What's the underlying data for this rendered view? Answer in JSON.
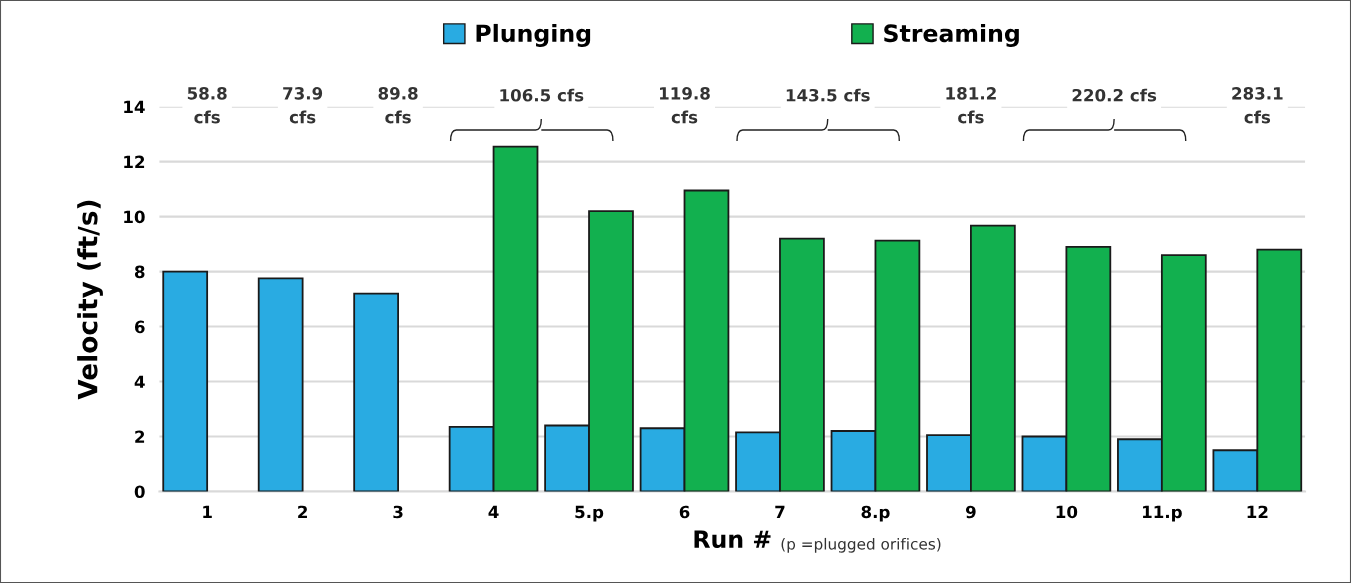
{
  "chart_data": {
    "type": "bar",
    "xlabel": "Run #",
    "ylabel": "Velocity (ft/s)",
    "categories": [
      "1",
      "2",
      "3",
      "4",
      "5.p",
      "6",
      "7",
      "8.p",
      "9",
      "10",
      "11.p",
      "12"
    ],
    "series": [
      {
        "name": "Plunging",
        "color": "#29abe2",
        "values": [
          8.0,
          7.75,
          7.2,
          2.35,
          2.4,
          2.3,
          2.15,
          2.2,
          2.05,
          2.0,
          1.9,
          1.5
        ]
      },
      {
        "name": "Streaming",
        "color": "#12b04f",
        "values": [
          null,
          null,
          null,
          12.55,
          10.2,
          10.95,
          9.2,
          9.13,
          9.67,
          8.9,
          8.6,
          8.8
        ]
      }
    ],
    "ylim": [
      0,
      14
    ],
    "yticks": [
      0,
      2,
      4,
      6,
      8,
      10,
      12,
      14
    ],
    "grid": "y",
    "legend": "top",
    "annotations": [
      "58.8\ncfs",
      "73.9\ncfs",
      "89.8\ncfs",
      "106.5 cfs",
      "119.8\ncfs",
      "143.5 cfs",
      "181.2\ncfs",
      "220.2 cfs",
      "283.1\ncfs",
      "(p =plugged orifices)"
    ]
  }
}
